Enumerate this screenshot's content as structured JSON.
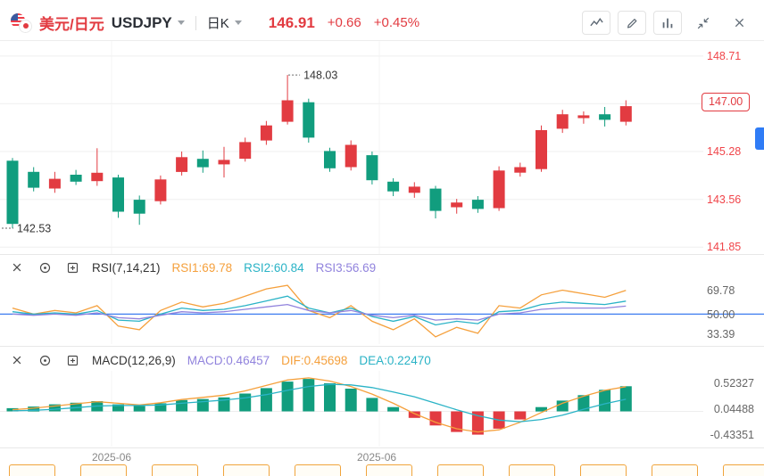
{
  "header": {
    "pair_name": "美元/日元",
    "symbol": "USDJPY",
    "timeframe_label": "日K",
    "last_price": "146.91",
    "change": "+0.66",
    "change_percent": "+0.45%"
  },
  "main_chart": {
    "axis_labels": [
      "148.71",
      "147.00",
      "145.28",
      "143.56",
      "141.85"
    ]
  },
  "rsi_pane": {
    "title": "RSI(7,14,21)",
    "legend": [
      {
        "label": "RSI1:69.78"
      },
      {
        "label": "RSI2:60.84"
      },
      {
        "label": "RSI3:56.69"
      }
    ],
    "axis_labels": [
      "69.78",
      "50.00",
      "33.39"
    ]
  },
  "macd_pane": {
    "title": "MACD(12,26,9)",
    "legend": [
      {
        "label": "MACD:0.46457"
      },
      {
        "label": "DIF:0.45698"
      },
      {
        "label": "DEA:0.22470"
      }
    ],
    "axis_labels": [
      "0.52327",
      "0.04488",
      "-0.43351"
    ]
  },
  "time_axis": {
    "labels": [
      "2025-06",
      "2025-06"
    ]
  },
  "colors": {
    "up": "#e23b41",
    "down": "#119d7e",
    "orange": "#f5a03c",
    "cyan": "#2ab3c6",
    "purple": "#9183dd",
    "blue_line": "#3d7cf0",
    "axis_red": "#f0454a",
    "grid": "#efefef"
  },
  "chart_data": [
    {
      "type": "candlestick",
      "title": "USDJPY daily",
      "y_ticks": [
        148.71,
        147.0,
        145.28,
        143.56,
        141.85
      ],
      "y_range": [
        141.6,
        149.25
      ],
      "annotations": [
        {
          "label": "148.03",
          "price": 148.03,
          "index": 13
        },
        {
          "label": "142.53",
          "price": 142.53,
          "index": 0
        }
      ],
      "ohlc": [
        [
          144.95,
          145.05,
          142.53,
          142.68
        ],
        [
          144.55,
          144.72,
          143.85,
          143.98
        ],
        [
          143.95,
          144.55,
          143.8,
          144.3
        ],
        [
          144.45,
          144.62,
          144.08,
          144.2
        ],
        [
          144.22,
          145.4,
          144.05,
          144.52
        ],
        [
          144.35,
          144.45,
          142.9,
          143.12
        ],
        [
          143.55,
          143.7,
          142.65,
          143.05
        ],
        [
          143.5,
          144.42,
          143.38,
          144.28
        ],
        [
          144.55,
          145.28,
          144.42,
          145.08
        ],
        [
          145.02,
          145.32,
          144.52,
          144.72
        ],
        [
          144.82,
          145.45,
          144.35,
          144.98
        ],
        [
          145.02,
          145.78,
          144.92,
          145.62
        ],
        [
          145.68,
          146.38,
          145.52,
          146.22
        ],
        [
          146.35,
          148.03,
          146.25,
          147.12
        ],
        [
          147.05,
          147.18,
          145.6,
          145.78
        ],
        [
          145.3,
          145.42,
          144.55,
          144.68
        ],
        [
          144.72,
          145.68,
          144.6,
          145.52
        ],
        [
          145.15,
          145.28,
          144.1,
          144.25
        ],
        [
          144.2,
          144.32,
          143.68,
          143.85
        ],
        [
          143.8,
          144.18,
          143.62,
          144.02
        ],
        [
          143.95,
          144.05,
          142.88,
          143.15
        ],
        [
          143.28,
          143.58,
          143.05,
          143.45
        ],
        [
          143.55,
          143.68,
          143.08,
          143.22
        ],
        [
          143.25,
          144.75,
          143.15,
          144.6
        ],
        [
          144.52,
          144.88,
          144.38,
          144.72
        ],
        [
          144.65,
          146.22,
          144.55,
          146.05
        ],
        [
          146.1,
          146.78,
          145.95,
          146.62
        ],
        [
          146.48,
          146.72,
          146.28,
          146.58
        ],
        [
          146.62,
          146.88,
          146.18,
          146.42
        ],
        [
          146.35,
          147.12,
          146.22,
          146.91
        ]
      ]
    },
    {
      "type": "line",
      "title": "RSI(7,14,21)",
      "y_ticks": [
        69.78,
        50.0,
        33.39
      ],
      "y_range": [
        25,
        80
      ],
      "baseline": 50,
      "series": [
        {
          "name": "RSI1",
          "value": 69.78,
          "color": "#f5a03c",
          "values": [
            55,
            50,
            53,
            51,
            57,
            40,
            37,
            53,
            60,
            56,
            59,
            65,
            71,
            74,
            53,
            47,
            57,
            44,
            37,
            46,
            31,
            39,
            34,
            57,
            55,
            66,
            70,
            67,
            64,
            69.78
          ]
        },
        {
          "name": "RSI2",
          "value": 60.84,
          "color": "#2ab3c6",
          "values": [
            52,
            50,
            51,
            50,
            53,
            45,
            44,
            50,
            55,
            53,
            54,
            57,
            61,
            65,
            55,
            51,
            55,
            48,
            44,
            48,
            41,
            44,
            42,
            52,
            53,
            58,
            60,
            59,
            58,
            60.84
          ]
        },
        {
          "name": "RSI3",
          "value": 56.69,
          "color": "#9183dd",
          "values": [
            50,
            49,
            50,
            49,
            51,
            47,
            46,
            49,
            52,
            51,
            52,
            54,
            56,
            58,
            53,
            51,
            53,
            49,
            47,
            49,
            45,
            46,
            45,
            50,
            51,
            54,
            55,
            55,
            55,
            56.69
          ]
        }
      ]
    },
    {
      "type": "macd",
      "title": "MACD(12,26,9)",
      "y_ticks": [
        0.52327,
        0.04488,
        -0.43351
      ],
      "y_range": [
        -0.65,
        0.75
      ],
      "macd_value": 0.46457,
      "histogram": [
        0.06,
        0.09,
        0.13,
        0.16,
        0.19,
        0.13,
        0.1,
        0.15,
        0.21,
        0.23,
        0.26,
        0.33,
        0.43,
        0.55,
        0.6,
        0.52,
        0.42,
        0.25,
        0.08,
        -0.12,
        -0.26,
        -0.38,
        -0.43,
        -0.32,
        -0.15,
        0.08,
        0.2,
        0.3,
        0.4,
        0.46457
      ],
      "series": [
        {
          "name": "DIF",
          "value": 0.45698,
          "color": "#f5a03c",
          "values": [
            0.03,
            0.06,
            0.1,
            0.14,
            0.18,
            0.15,
            0.12,
            0.16,
            0.22,
            0.26,
            0.3,
            0.38,
            0.48,
            0.58,
            0.62,
            0.56,
            0.46,
            0.32,
            0.15,
            -0.04,
            -0.2,
            -0.32,
            -0.38,
            -0.34,
            -0.2,
            -0.02,
            0.15,
            0.28,
            0.39,
            0.45698
          ]
        },
        {
          "name": "DEA",
          "value": 0.2247,
          "color": "#2ab3c6",
          "values": [
            0.01,
            0.02,
            0.04,
            0.07,
            0.1,
            0.11,
            0.11,
            0.12,
            0.15,
            0.18,
            0.21,
            0.25,
            0.31,
            0.39,
            0.46,
            0.5,
            0.49,
            0.44,
            0.36,
            0.27,
            0.15,
            0.03,
            -0.08,
            -0.16,
            -0.19,
            -0.15,
            -0.07,
            0.04,
            0.14,
            0.2247
          ]
        }
      ]
    }
  ]
}
